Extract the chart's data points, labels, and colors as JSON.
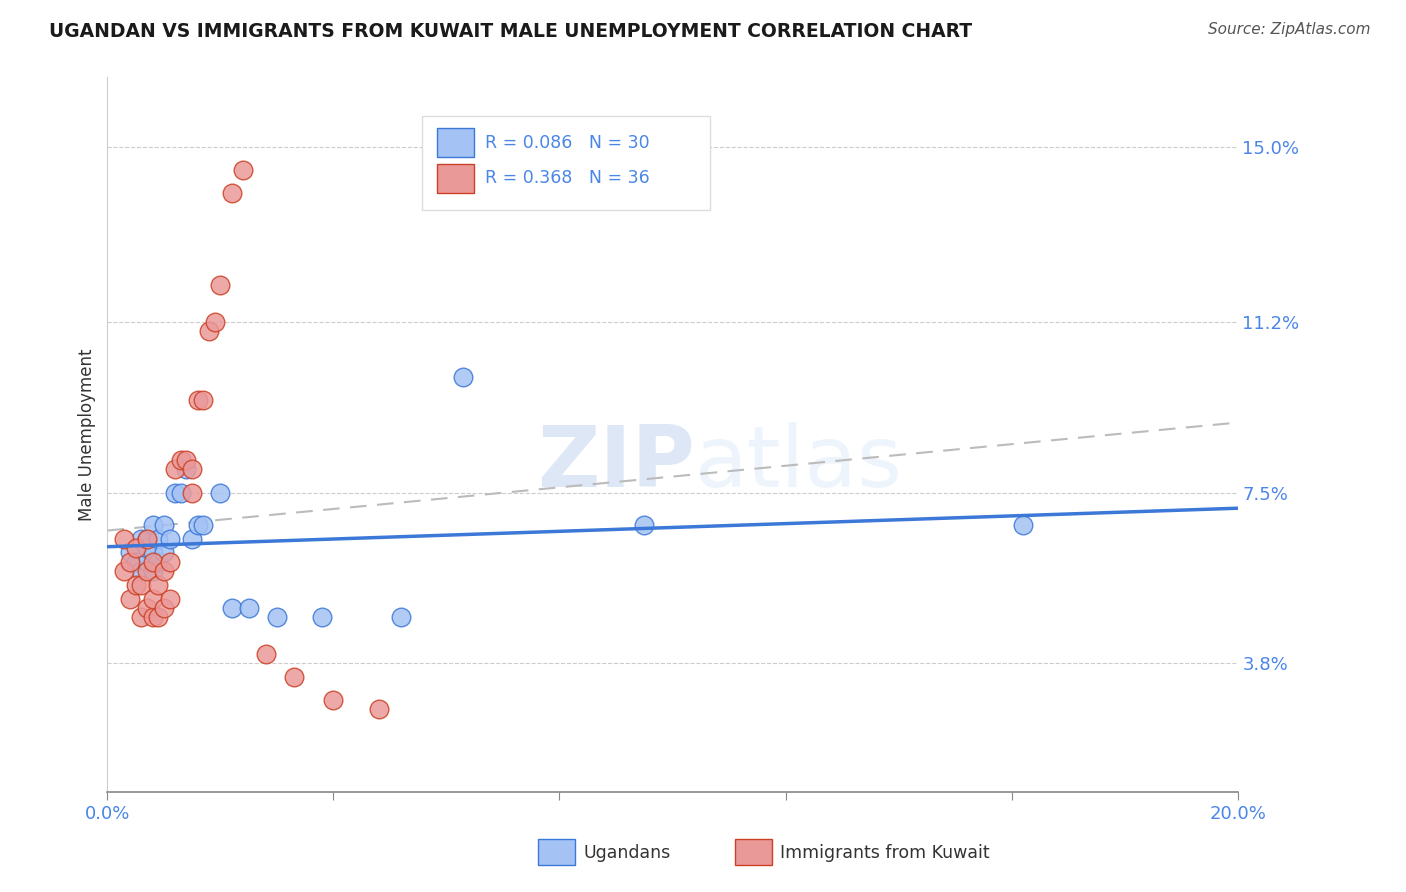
{
  "title": "UGANDAN VS IMMIGRANTS FROM KUWAIT MALE UNEMPLOYMENT CORRELATION CHART",
  "source": "Source: ZipAtlas.com",
  "ylabel": "Male Unemployment",
  "yticks": [
    0.038,
    0.075,
    0.112,
    0.15
  ],
  "ytick_labels": [
    "3.8%",
    "7.5%",
    "11.2%",
    "15.0%"
  ],
  "xmin": 0.0,
  "xmax": 0.2,
  "ymin": 0.01,
  "ymax": 0.165,
  "legend1_r": "R = 0.086",
  "legend1_n": "N = 30",
  "legend2_r": "R = 0.368",
  "legend2_n": "N = 36",
  "legend_label1": "Ugandans",
  "legend_label2": "Immigrants from Kuwait",
  "watermark_zip": "ZIP",
  "watermark_atlas": "atlas",
  "blue_fill": "#a4c2f4",
  "blue_edge": "#3c78d8",
  "pink_fill": "#ea9999",
  "pink_edge": "#cc4125",
  "blue_line_color": "#3c78d8",
  "pink_line_color": "#e06666",
  "title_color": "#1a1a1a",
  "axis_color": "#4a86e8",
  "source_color": "#555555",
  "grid_color": "#cccccc",
  "ugandan_x": [
    0.004,
    0.005,
    0.006,
    0.006,
    0.007,
    0.007,
    0.007,
    0.008,
    0.008,
    0.008,
    0.009,
    0.009,
    0.01,
    0.01,
    0.011,
    0.012,
    0.013,
    0.014,
    0.015,
    0.016,
    0.017,
    0.02,
    0.022,
    0.025,
    0.03,
    0.038,
    0.052,
    0.063,
    0.095,
    0.162
  ],
  "ugandan_y": [
    0.062,
    0.06,
    0.058,
    0.065,
    0.06,
    0.063,
    0.065,
    0.058,
    0.062,
    0.068,
    0.06,
    0.065,
    0.062,
    0.068,
    0.065,
    0.075,
    0.075,
    0.08,
    0.065,
    0.068,
    0.068,
    0.075,
    0.05,
    0.05,
    0.048,
    0.048,
    0.048,
    0.1,
    0.068,
    0.068
  ],
  "kuwait_x": [
    0.003,
    0.003,
    0.004,
    0.004,
    0.005,
    0.005,
    0.006,
    0.006,
    0.007,
    0.007,
    0.007,
    0.008,
    0.008,
    0.008,
    0.009,
    0.009,
    0.01,
    0.01,
    0.011,
    0.011,
    0.012,
    0.013,
    0.014,
    0.015,
    0.015,
    0.016,
    0.017,
    0.018,
    0.019,
    0.02,
    0.022,
    0.024,
    0.028,
    0.033,
    0.04,
    0.048
  ],
  "kuwait_y": [
    0.058,
    0.065,
    0.052,
    0.06,
    0.055,
    0.063,
    0.048,
    0.055,
    0.05,
    0.058,
    0.065,
    0.048,
    0.052,
    0.06,
    0.048,
    0.055,
    0.05,
    0.058,
    0.052,
    0.06,
    0.08,
    0.082,
    0.082,
    0.075,
    0.08,
    0.095,
    0.095,
    0.11,
    0.112,
    0.12,
    0.14,
    0.145,
    0.04,
    0.035,
    0.03,
    0.028
  ]
}
